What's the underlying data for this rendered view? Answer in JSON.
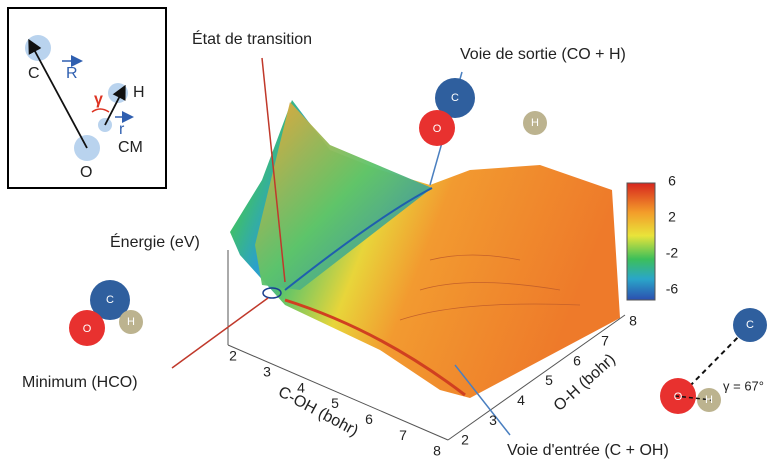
{
  "inset": {
    "c": "C",
    "r_big": "R",
    "gamma": "γ",
    "h": "H",
    "r_small": "r",
    "cm": "CM",
    "o": "O"
  },
  "annotations": {
    "transition_state": "État de transition",
    "exit_channel": "Voie de sortie (CO + H)",
    "energy_axis": "Énergie (eV)",
    "minimum": "Minimum (HCO)",
    "entrance_channel": "Voie d'entrée (C + OH)"
  },
  "axes": {
    "c_oh": {
      "label": "C-OH (bohr)",
      "ticks": [
        2,
        3,
        4,
        5,
        6,
        7,
        8
      ]
    },
    "o_h": {
      "label": "O-H (bohr)",
      "ticks": [
        2,
        3,
        4,
        5,
        6,
        7,
        8
      ]
    },
    "colorbar": {
      "ticks": [
        6,
        2,
        -2,
        -6
      ]
    }
  },
  "molecules": {
    "exit": {
      "c": "C",
      "o": "O",
      "h": "H"
    },
    "minimum": {
      "c": "C",
      "o": "O",
      "h": "H"
    },
    "entrance": {
      "c": "C",
      "o": "O",
      "h": "H",
      "angle": "γ = 67°"
    }
  }
}
